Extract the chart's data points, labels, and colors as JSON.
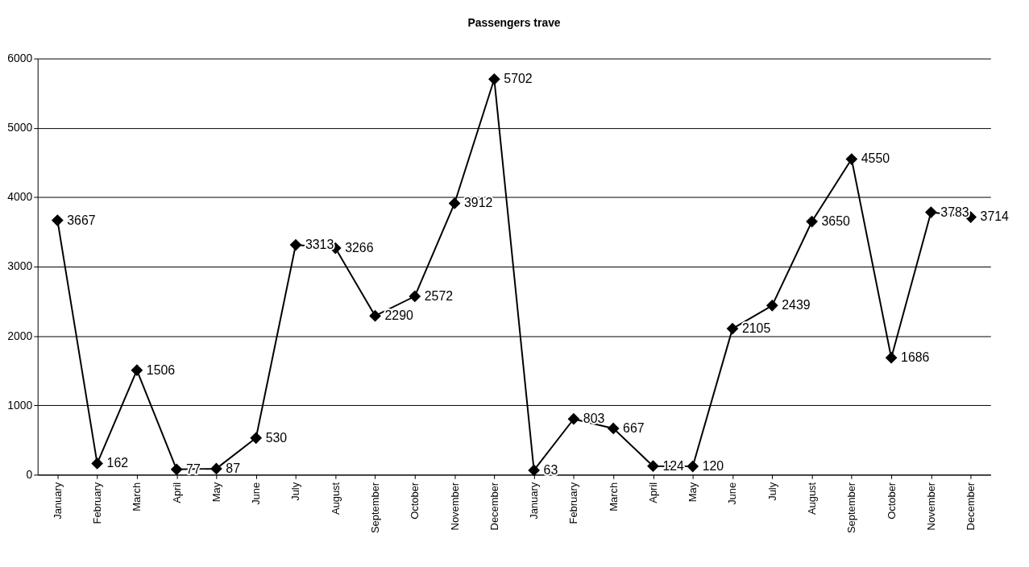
{
  "chart_data": {
    "type": "line",
    "title": "Passengers trave",
    "categories": [
      "January",
      "February",
      "March",
      "April",
      "May",
      "June",
      "July",
      "August",
      "September",
      "October",
      "November",
      "December",
      "January",
      "February",
      "March",
      "April",
      "May",
      "June",
      "July",
      "August",
      "September",
      "October",
      "November",
      "December"
    ],
    "series": [
      {
        "color": "#000000",
        "values": [
          3667,
          162,
          1506,
          77,
          87,
          530,
          3313,
          3266,
          2290,
          2572,
          3912,
          5702,
          63,
          803,
          667,
          124,
          120,
          2105,
          2439,
          3650,
          4550,
          1686,
          3783,
          3714
        ]
      }
    ],
    "ylim": [
      0,
      6000
    ],
    "yticks": [
      0,
      1000,
      2000,
      3000,
      4000,
      5000,
      6000
    ],
    "grid": "y",
    "marker": "diamond",
    "line_style": "solid",
    "data_labels": true
  }
}
